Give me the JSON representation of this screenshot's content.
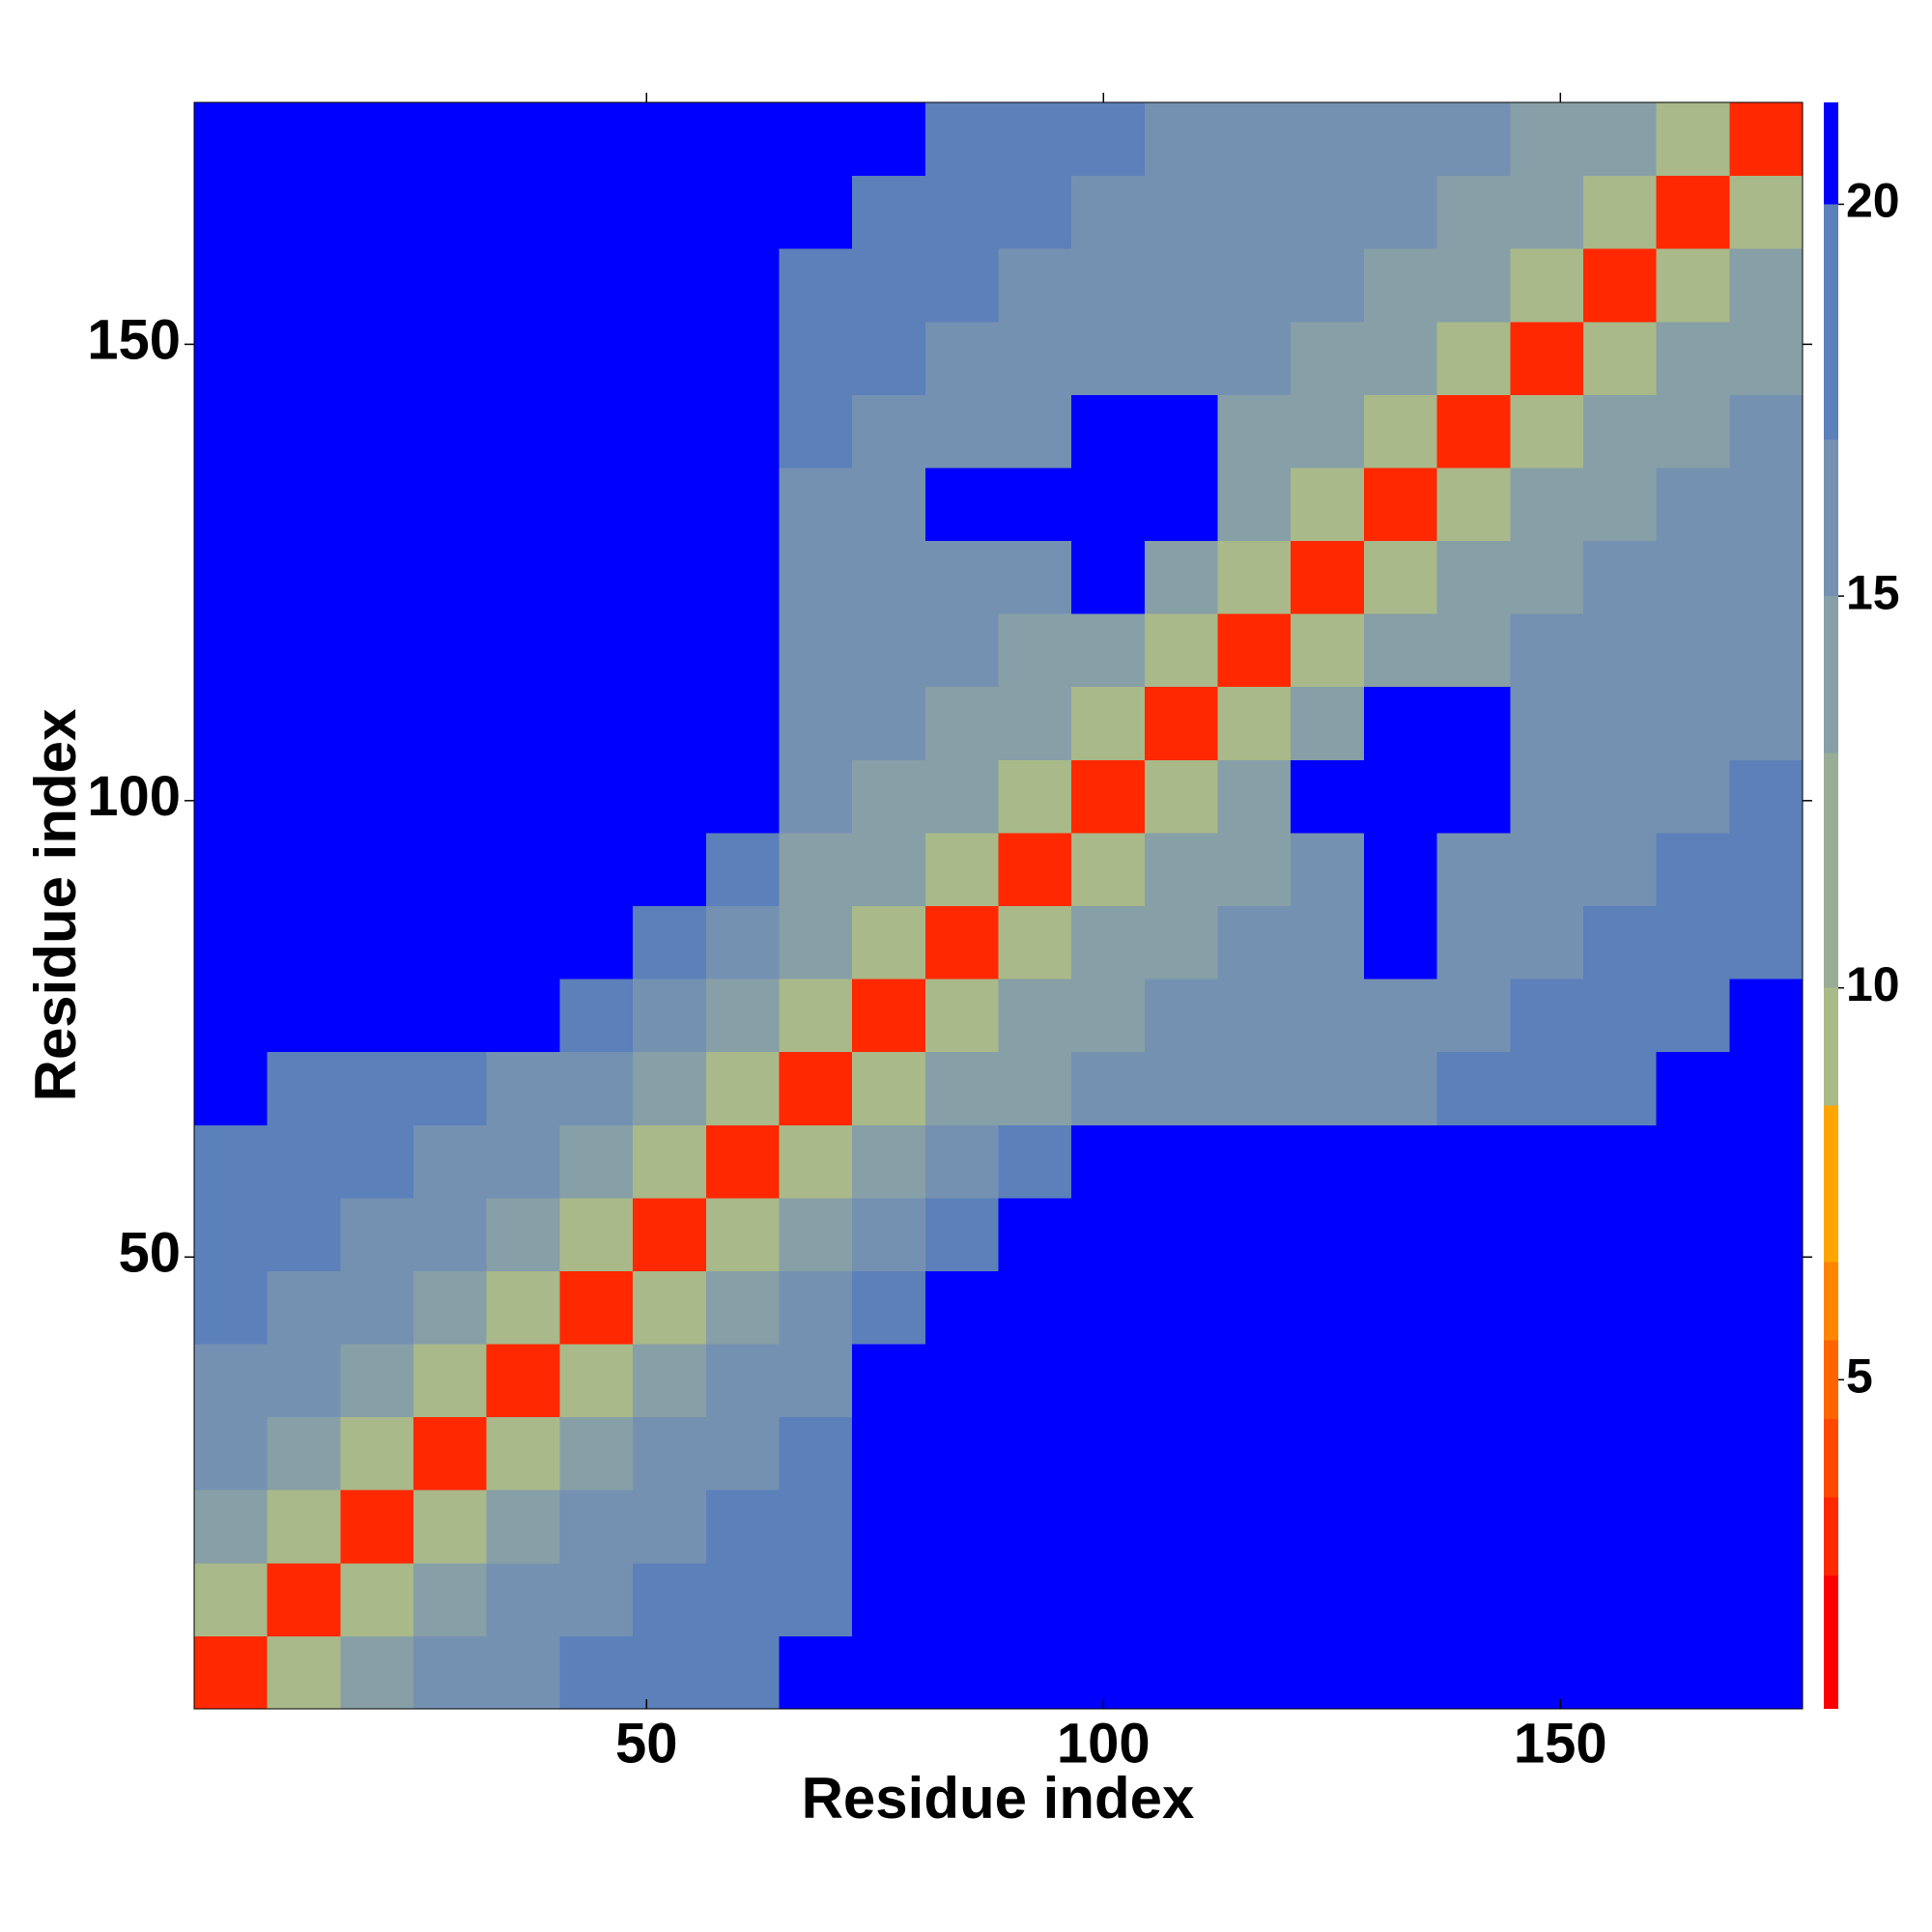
{
  "chart_data": {
    "type": "heatmap",
    "xlabel": "Residue index",
    "ylabel": "Residue index",
    "x": [
      4.5,
      12.5,
      20.5,
      28.5,
      36.5,
      44.5,
      52.5,
      60.5,
      68.5,
      76.5,
      84.5,
      92.5,
      100.5,
      108.5,
      116.5,
      124.5,
      132.5,
      140.5,
      148.5,
      156.5,
      164.5,
      172.5
    ],
    "y": [
      4.5,
      12.5,
      20.5,
      28.5,
      36.5,
      44.5,
      52.5,
      60.5,
      68.5,
      76.5,
      84.5,
      92.5,
      100.5,
      108.5,
      116.5,
      124.5,
      132.5,
      140.5,
      148.5,
      156.5,
      164.5,
      172.5
    ],
    "z": [
      [
        3,
        9,
        14,
        16,
        17,
        18,
        19,
        20,
        21,
        21,
        21,
        21,
        21,
        21,
        21,
        21,
        21,
        21,
        21,
        21,
        21,
        21
      ],
      [
        9,
        3,
        9,
        14,
        16,
        17,
        18,
        19,
        20,
        21,
        21,
        21,
        21,
        21,
        21,
        21,
        21,
        21,
        21,
        21,
        21,
        21
      ],
      [
        14,
        9,
        3,
        9,
        14,
        16,
        17,
        18,
        19,
        21,
        21,
        21,
        21,
        21,
        21,
        21,
        21,
        21,
        21,
        21,
        21,
        21
      ],
      [
        16,
        14,
        9,
        3,
        9,
        14,
        16,
        17,
        18,
        21,
        21,
        21,
        21,
        21,
        21,
        21,
        21,
        21,
        21,
        21,
        21,
        21
      ],
      [
        17,
        16,
        14,
        9,
        3,
        9,
        14,
        16,
        17,
        21,
        21,
        21,
        21,
        21,
        21,
        21,
        21,
        21,
        21,
        21,
        21,
        21
      ],
      [
        18,
        17,
        16,
        14,
        9,
        3,
        9,
        14,
        16,
        19,
        21,
        21,
        21,
        21,
        21,
        21,
        21,
        21,
        21,
        21,
        21,
        21
      ],
      [
        19,
        18,
        17,
        16,
        14,
        9,
        3,
        9,
        14,
        17,
        19,
        21,
        21,
        21,
        21,
        21,
        21,
        21,
        21,
        21,
        21,
        21
      ],
      [
        20,
        19,
        18,
        17,
        16,
        14,
        9,
        3,
        9,
        14,
        17,
        19,
        21,
        21,
        21,
        21,
        21,
        21,
        21,
        21,
        21,
        21
      ],
      [
        21,
        20,
        19,
        18,
        17,
        16,
        14,
        9,
        3,
        9,
        14,
        15,
        16,
        16,
        17,
        17,
        17,
        18,
        18,
        18,
        21,
        21
      ],
      [
        21,
        21,
        21,
        21,
        21,
        19,
        17,
        14,
        9,
        3,
        9,
        14,
        15,
        16,
        16,
        17,
        17,
        17,
        18,
        18,
        18,
        21
      ],
      [
        21,
        21,
        21,
        21,
        21,
        21,
        19,
        17,
        14,
        9,
        3,
        9,
        14,
        15,
        16,
        16,
        21,
        17,
        17,
        18,
        18,
        18
      ],
      [
        21,
        21,
        21,
        21,
        21,
        21,
        21,
        19,
        15,
        14,
        9,
        3,
        9,
        14,
        15,
        16,
        21,
        17,
        17,
        17,
        18,
        18
      ],
      [
        21,
        21,
        21,
        21,
        21,
        21,
        21,
        21,
        16,
        15,
        14,
        9,
        3,
        9,
        14,
        21,
        21,
        21,
        17,
        17,
        17,
        18
      ],
      [
        21,
        21,
        21,
        21,
        21,
        21,
        21,
        21,
        16,
        16,
        15,
        14,
        9,
        3,
        9,
        14,
        21,
        21,
        16,
        17,
        17,
        17
      ],
      [
        21,
        21,
        21,
        21,
        21,
        21,
        21,
        21,
        17,
        16,
        16,
        15,
        14,
        9,
        3,
        9,
        14,
        15,
        16,
        16,
        17,
        17
      ],
      [
        21,
        21,
        21,
        21,
        21,
        21,
        21,
        21,
        17,
        17,
        16,
        16,
        21,
        14,
        9,
        3,
        9,
        14,
        15,
        16,
        16,
        17
      ],
      [
        21,
        21,
        21,
        21,
        21,
        21,
        21,
        21,
        17,
        17,
        21,
        21,
        21,
        21,
        14,
        9,
        3,
        9,
        14,
        15,
        16,
        16
      ],
      [
        21,
        21,
        21,
        21,
        21,
        21,
        21,
        21,
        18,
        17,
        17,
        17,
        21,
        21,
        15,
        14,
        9,
        3,
        9,
        14,
        15,
        16
      ],
      [
        21,
        21,
        21,
        21,
        21,
        21,
        21,
        21,
        18,
        18,
        17,
        17,
        17,
        16,
        16,
        15,
        14,
        9,
        3,
        9,
        14,
        15
      ],
      [
        21,
        21,
        21,
        21,
        21,
        21,
        21,
        21,
        18,
        18,
        18,
        17,
        17,
        17,
        16,
        16,
        15,
        14,
        9,
        3,
        9,
        14
      ],
      [
        21,
        21,
        21,
        21,
        21,
        21,
        21,
        21,
        21,
        18,
        18,
        18,
        17,
        17,
        17,
        16,
        16,
        15,
        14,
        9,
        3,
        9
      ],
      [
        21,
        21,
        21,
        21,
        21,
        21,
        21,
        21,
        21,
        21,
        18,
        18,
        18,
        17,
        17,
        17,
        16,
        16,
        15,
        14,
        9,
        3
      ]
    ],
    "xlim": [
      0.5,
      176.5
    ],
    "ylim": [
      0.5,
      176.5
    ],
    "xticks": [
      50,
      100,
      150
    ],
    "yticks": [
      50,
      100,
      150
    ],
    "clim": [
      0.8,
      21.3
    ],
    "cticks": [
      5,
      10,
      15,
      20
    ],
    "colorscale": [
      [
        2.5,
        "#ff0000"
      ],
      [
        3.5,
        "#ff2800"
      ],
      [
        4.5,
        "#ff4800"
      ],
      [
        5.5,
        "#ff6400"
      ],
      [
        6.5,
        "#ff8400"
      ],
      [
        8.5,
        "#ffa500"
      ],
      [
        10,
        "#a9b98a"
      ],
      [
        13,
        "#98ad96"
      ],
      [
        15,
        "#879fa6"
      ],
      [
        17,
        "#7591b2"
      ],
      [
        20,
        "#5b80ba"
      ],
      [
        21.3,
        "#0000ff"
      ]
    ]
  }
}
